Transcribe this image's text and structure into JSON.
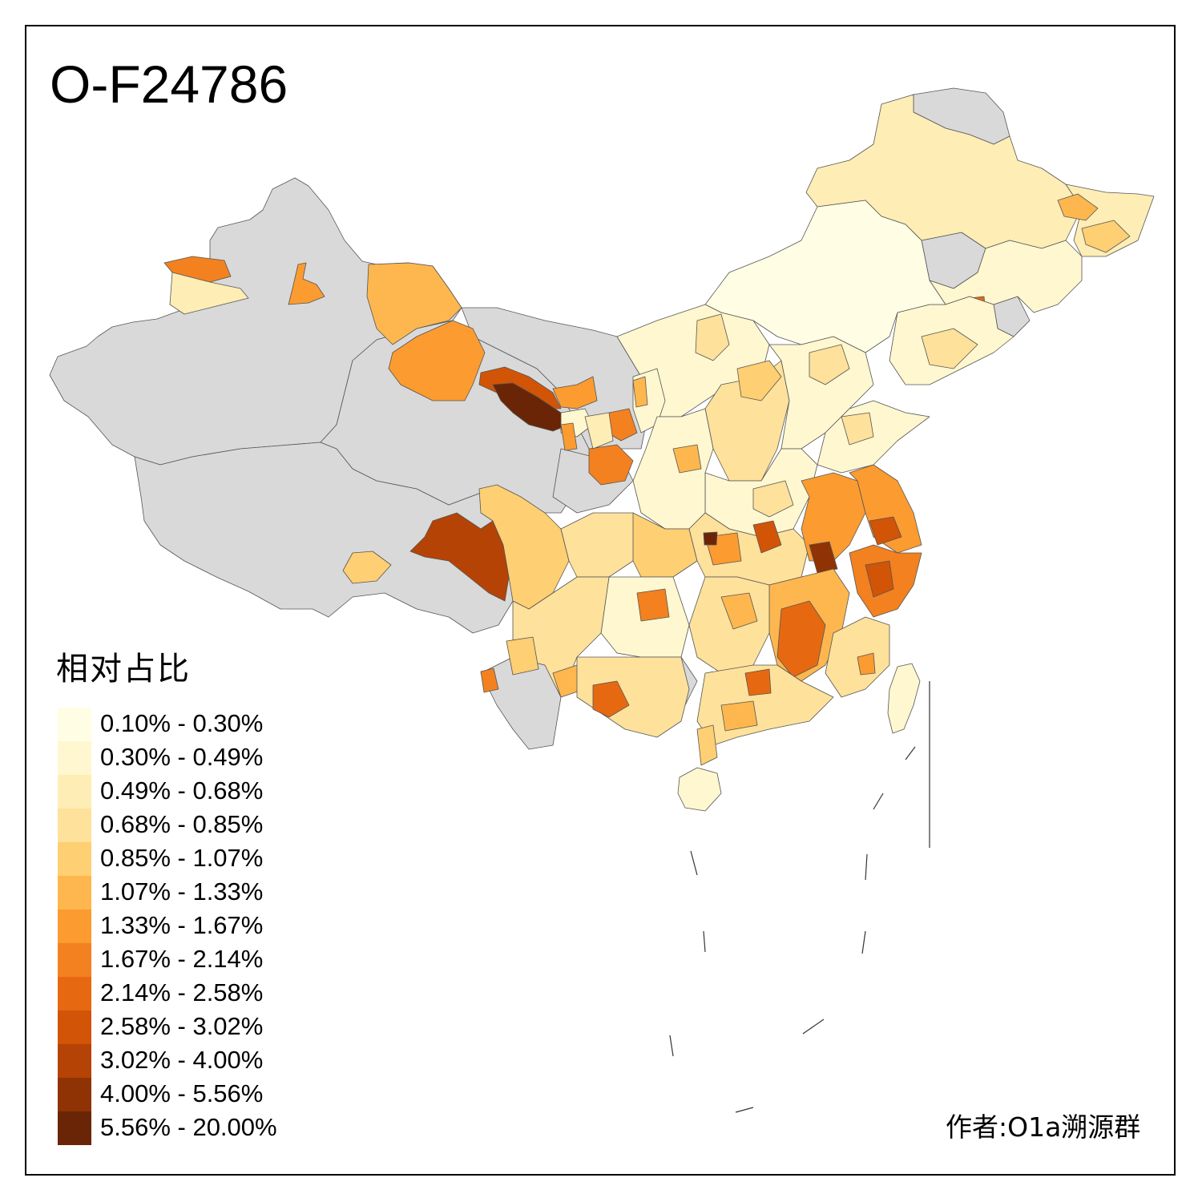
{
  "map": {
    "title": "O-F24786",
    "credit": "作者:O1a溯源群",
    "legend": {
      "title": "相对占比",
      "items": [
        {
          "label": "0.10% - 0.30%",
          "color": "#FFFEE5"
        },
        {
          "label": "0.30% - 0.49%",
          "color": "#FFF7D0"
        },
        {
          "label": "0.49% - 0.68%",
          "color": "#FEEDB5"
        },
        {
          "label": "0.68% - 0.85%",
          "color": "#FEE19B"
        },
        {
          "label": "0.85% - 1.07%",
          "color": "#FECF73"
        },
        {
          "label": "1.07% - 1.33%",
          "color": "#FEB74E"
        },
        {
          "label": "1.33% - 1.67%",
          "color": "#FB9B30"
        },
        {
          "label": "1.67% - 2.14%",
          "color": "#F3811F"
        },
        {
          "label": "2.14% - 2.58%",
          "color": "#E66912"
        },
        {
          "label": "2.58% - 3.02%",
          "color": "#D25407"
        },
        {
          "label": "3.02% - 4.00%",
          "color": "#B54305"
        },
        {
          "label": "4.00% - 5.56%",
          "color": "#8F3304"
        },
        {
          "label": "5.56% - 20.00%",
          "color": "#6A2506"
        }
      ]
    },
    "no_data_color": "#D9D9D9",
    "border_color": "#555555"
  }
}
